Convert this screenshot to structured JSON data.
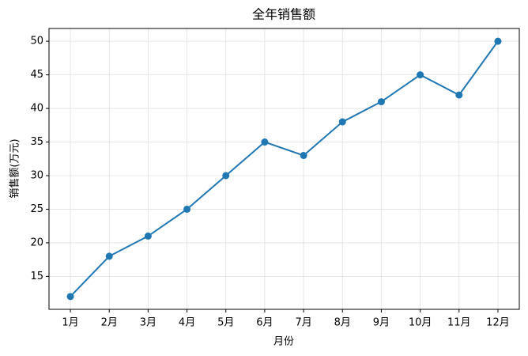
{
  "chart_data": {
    "type": "line",
    "title": "全年销售额",
    "x_label": "月份",
    "y_label": "销售额(万元)",
    "categories": [
      "1月",
      "2月",
      "3月",
      "4月",
      "5月",
      "6月",
      "7月",
      "8月",
      "9月",
      "10月",
      "11月",
      "12月"
    ],
    "series": [
      {
        "name": "销售额",
        "color": "#1f77b4",
        "values": [
          12,
          18,
          21,
          25,
          30,
          35,
          33,
          38,
          41,
          45,
          42,
          50
        ]
      }
    ],
    "ylim": [
      10.1,
      51.9
    ],
    "yticks": [
      15,
      20,
      25,
      30,
      35,
      40,
      45,
      50
    ],
    "grid": true
  }
}
